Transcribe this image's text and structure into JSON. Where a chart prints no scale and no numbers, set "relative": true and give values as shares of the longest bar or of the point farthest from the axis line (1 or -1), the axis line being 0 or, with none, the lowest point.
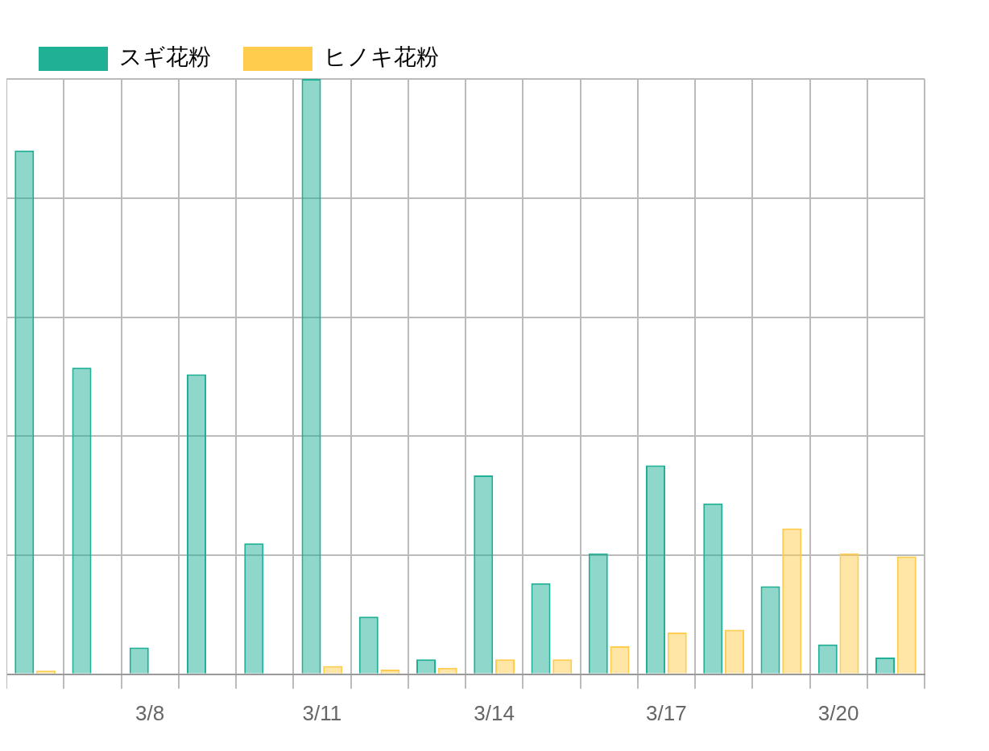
{
  "chart_data": {
    "type": "bar",
    "relative": true,
    "grid": true,
    "legend": "top left",
    "categories": [
      null,
      null,
      "3/8",
      null,
      null,
      "3/11",
      null,
      null,
      "3/14",
      null,
      null,
      "3/17",
      null,
      null,
      "3/20",
      null
    ],
    "series": [
      {
        "name": "スギ花粉",
        "color": "#1fb095",
        "values": [
          0.88,
          0.515,
          0.045,
          0.504,
          0.22,
          1.0,
          0.097,
          0.025,
          0.334,
          0.153,
          0.203,
          0.351,
          0.287,
          0.148,
          0.05,
          0.028
        ]
      },
      {
        "name": "ヒノキ花粉",
        "color": "#ffcc4d",
        "values": [
          0.006,
          0,
          0,
          0,
          0,
          0.014,
          0.008,
          0.011,
          0.025,
          0.025,
          0.047,
          0.07,
          0.075,
          0.245,
          0.203,
          0.198
        ]
      }
    ]
  }
}
